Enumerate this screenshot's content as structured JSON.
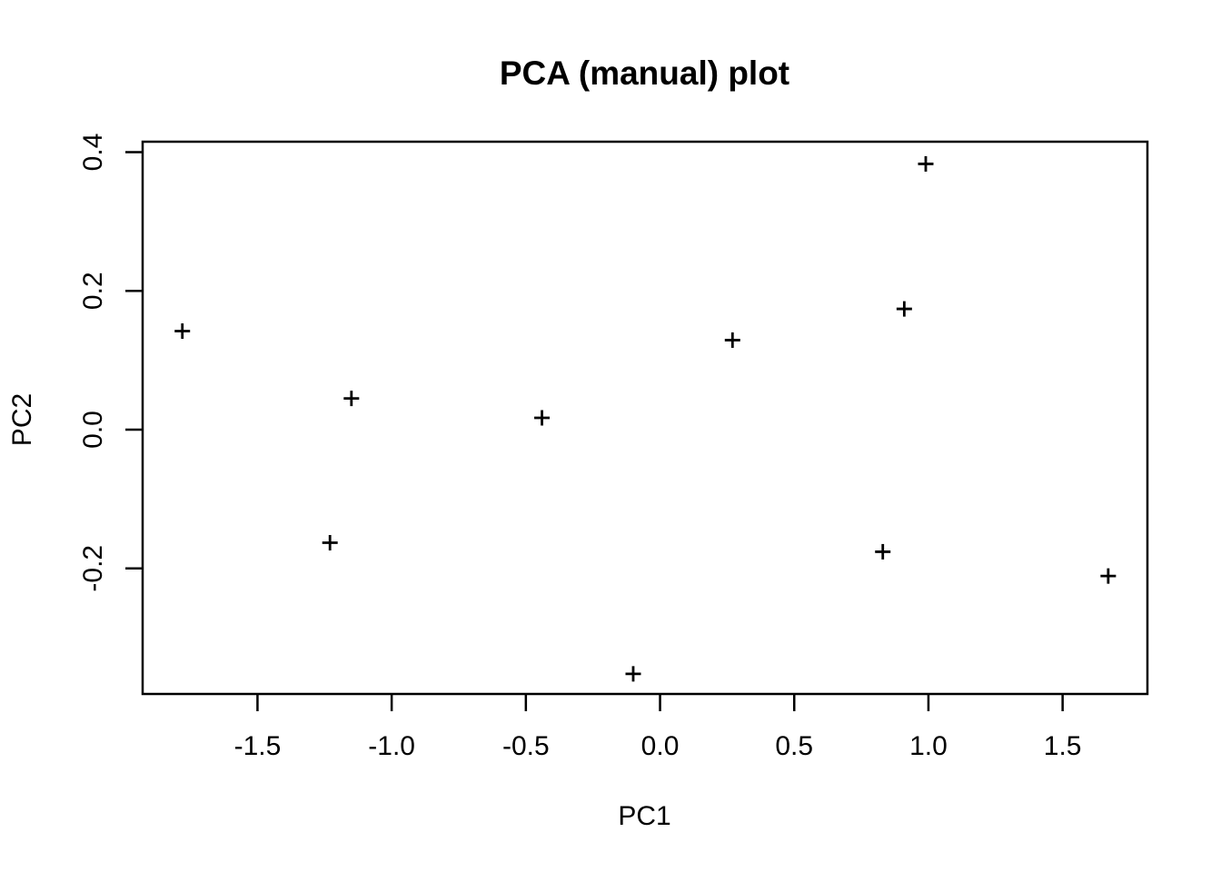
{
  "chart_data": {
    "type": "scatter",
    "title": "PCA (manual) plot",
    "xlabel": "PC1",
    "ylabel": "PC2",
    "marker": "plus",
    "grid": false,
    "legend": null,
    "colors": {
      "background": "#ffffff",
      "foreground": "#000000"
    },
    "xlim": [
      -1.928,
      1.816
    ],
    "ylim": [
      -0.381,
      0.415
    ],
    "x_ticks": [
      {
        "value": -1.5,
        "label": "-1.5"
      },
      {
        "value": -1.0,
        "label": "-1.0"
      },
      {
        "value": -0.5,
        "label": "-0.5"
      },
      {
        "value": 0.0,
        "label": "0.0"
      },
      {
        "value": 0.5,
        "label": "0.5"
      },
      {
        "value": 1.0,
        "label": "1.0"
      },
      {
        "value": 1.5,
        "label": "1.5"
      }
    ],
    "y_ticks": [
      {
        "value": -0.2,
        "label": "-0.2"
      },
      {
        "value": 0.0,
        "label": "0.0"
      },
      {
        "value": 0.2,
        "label": "0.2"
      },
      {
        "value": 0.4,
        "label": "0.4"
      }
    ],
    "points": [
      {
        "x": -1.78,
        "y": 0.142
      },
      {
        "x": -1.23,
        "y": -0.163
      },
      {
        "x": -1.15,
        "y": 0.045
      },
      {
        "x": -0.44,
        "y": 0.017
      },
      {
        "x": -0.1,
        "y": -0.352
      },
      {
        "x": 0.27,
        "y": 0.129
      },
      {
        "x": 0.83,
        "y": -0.176
      },
      {
        "x": 0.91,
        "y": 0.174
      },
      {
        "x": 0.99,
        "y": 0.383
      },
      {
        "x": 1.67,
        "y": -0.211
      }
    ]
  }
}
